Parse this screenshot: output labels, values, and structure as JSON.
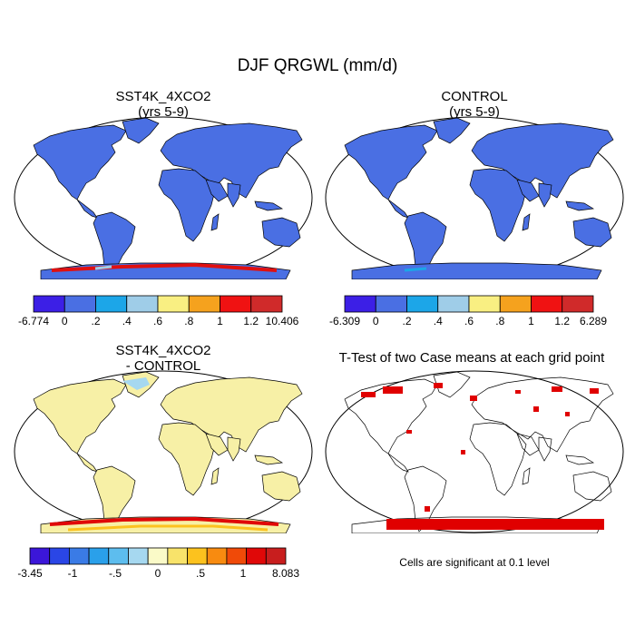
{
  "figure": {
    "title": "DJF QRGWL (mm/d)"
  },
  "panels": {
    "p1": {
      "title": "SST4K_4XCO2",
      "subtitle": "(yrs 5-9)"
    },
    "p2": {
      "title": "CONTROL",
      "subtitle": "(yrs 5-9)"
    },
    "p3": {
      "title": "SST4K_4XCO2",
      "subtitle": "- CONTROL"
    },
    "p4": {
      "title": "T-Test of two Case means at each grid point",
      "note": "Cells are significant at 0.1 level"
    }
  },
  "colorbars": {
    "cb1": {
      "labels": [
        "-6.774",
        "0",
        ".2",
        ".4",
        ".6",
        ".8",
        "1",
        "1.2",
        "10.406"
      ],
      "colors": [
        "#3c1fe6",
        "#4a6fe3",
        "#1ca6e8",
        "#9fcde8",
        "#f9ef82",
        "#f5a21e",
        "#f01212",
        "#d02a2a"
      ]
    },
    "cb2": {
      "labels": [
        "-6.309",
        "0",
        ".2",
        ".4",
        ".6",
        ".8",
        "1",
        "1.2",
        "6.289"
      ],
      "colors": [
        "#3c1fe6",
        "#4a6fe3",
        "#1ca6e8",
        "#9fcde8",
        "#f9ef82",
        "#f5a21e",
        "#f01212",
        "#d02a2a"
      ]
    },
    "cb3": {
      "labels": [
        "-3.45",
        "-1",
        "-.5",
        "0",
        ".5",
        "1",
        "8.083"
      ],
      "colors": [
        "#3b16d8",
        "#2a46e6",
        "#3a7be6",
        "#2aa0ea",
        "#5dbdee",
        "#a6d8f0",
        "#fafac8",
        "#f8e36a",
        "#fcc21e",
        "#f88b10",
        "#f04a08",
        "#e00808",
        "#c81e1e"
      ]
    }
  },
  "map_colors": {
    "land_blue": "#4a6fe3",
    "land_yellow": "#f7f0a6",
    "significant": "#e00000",
    "ocean": "#ffffff"
  }
}
